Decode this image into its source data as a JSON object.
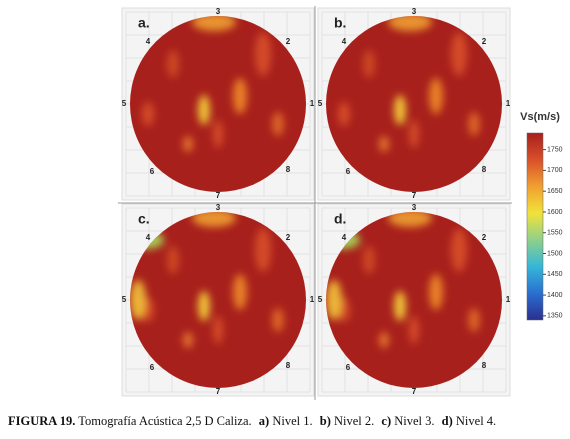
{
  "panels": [
    {
      "label": "a.",
      "sensors": [
        "1",
        "2",
        "3",
        "4",
        "5",
        "6",
        "7",
        "8"
      ]
    },
    {
      "label": "b.",
      "sensors": [
        "1",
        "2",
        "3",
        "4",
        "5",
        "6",
        "7",
        "8"
      ]
    },
    {
      "label": "c.",
      "sensors": [
        "1",
        "2",
        "3",
        "4",
        "5",
        "6",
        "7",
        "8"
      ]
    },
    {
      "label": "d.",
      "sensors": [
        "1",
        "2",
        "3",
        "4",
        "5",
        "6",
        "7",
        "8"
      ]
    }
  ],
  "colorbar": {
    "title": "Vs(m/s)",
    "lim": [
      1340,
      1790
    ],
    "ticks": [
      1350,
      1400,
      1450,
      1500,
      1550,
      1600,
      1650,
      1700,
      1750
    ],
    "colors": [
      "#2b2f8f",
      "#2a6fd0",
      "#35b7d8",
      "#8fd08a",
      "#f2e23a",
      "#f0a030",
      "#d8502a",
      "#a8201c"
    ]
  },
  "caption": {
    "label": "FIGURA 19.",
    "text": "Tomografía Acústica 2,5 D Caliza.",
    "items": [
      {
        "key": "a)",
        "text": "Nivel 1."
      },
      {
        "key": "b)",
        "text": "Nivel 2."
      },
      {
        "key": "c)",
        "text": "Nivel 3."
      },
      {
        "key": "d)",
        "text": "Nivel 4."
      }
    ]
  }
}
